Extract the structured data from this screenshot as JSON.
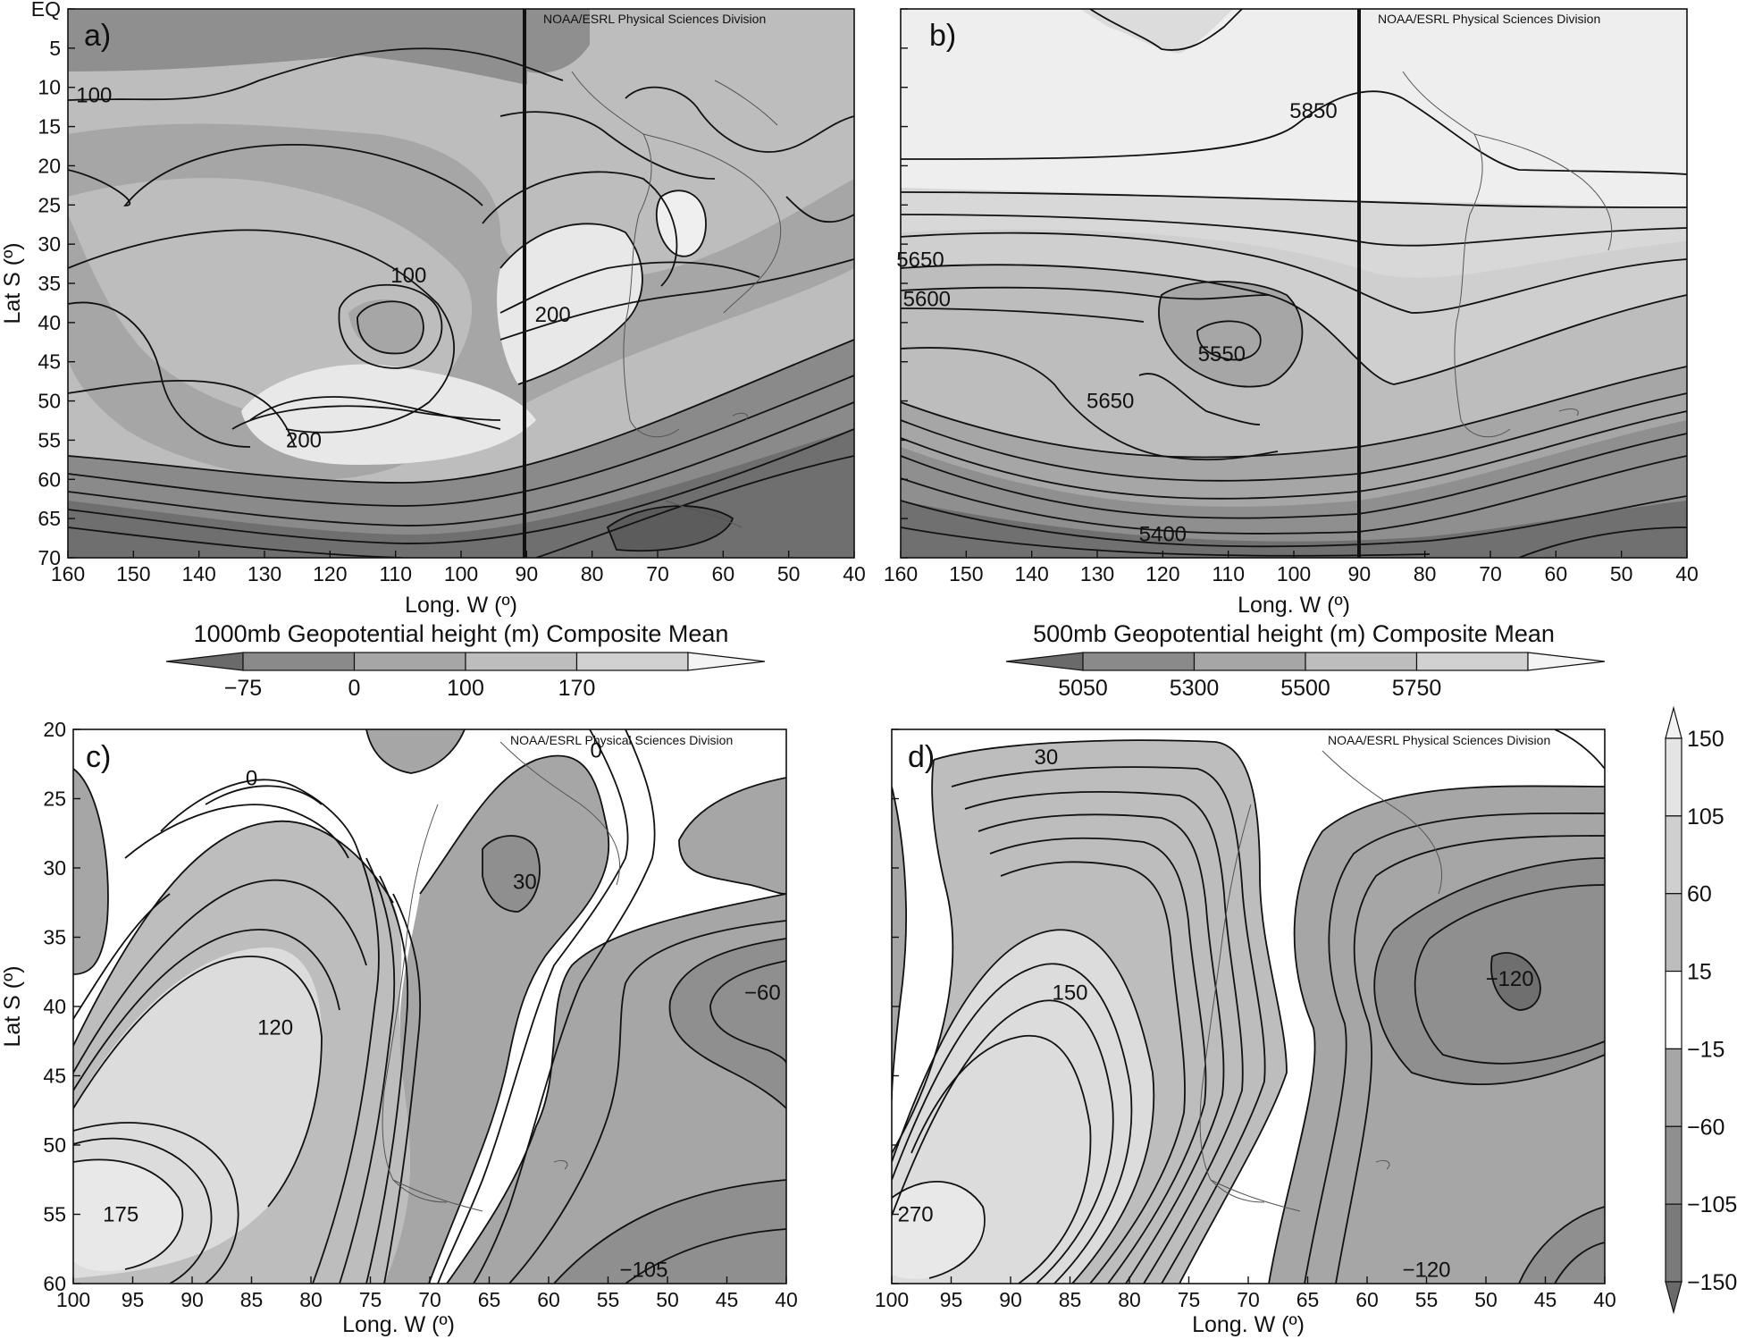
{
  "panels": [
    {
      "letter": "a)",
      "credit": "NOAA/ESRL Physical Sciences Division",
      "xlabel": "Long. W (º)",
      "ylabel": "Lat S (º)",
      "xticks": [
        "160",
        "150",
        "140",
        "130",
        "120",
        "110",
        "100",
        "90",
        "80",
        "70",
        "60",
        "50",
        "40"
      ],
      "yticks": [
        "EQ",
        "5",
        "10",
        "15",
        "20",
        "25",
        "30",
        "35",
        "40",
        "45",
        "50",
        "55",
        "60",
        "65",
        "70"
      ],
      "contour_labels": [
        {
          "text": "100",
          "lon": 156,
          "lat": 11
        },
        {
          "text": "100",
          "lon": 108,
          "lat": 34
        },
        {
          "text": "200",
          "lon": 86,
          "lat": 39
        },
        {
          "text": "200",
          "lon": 124,
          "lat": 55
        }
      ],
      "colorbar": {
        "title": "1000mb Geopotential height (m) Composite Mean",
        "labels": [
          "−75",
          "0",
          "100",
          "170"
        ]
      }
    },
    {
      "letter": "b)",
      "credit": "NOAA/ESRL Physical Sciences Division",
      "xlabel": "Long. W (º)",
      "ylabel": "",
      "xticks": [
        "160",
        "150",
        "140",
        "130",
        "120",
        "110",
        "100",
        "90",
        "80",
        "70",
        "60",
        "50",
        "40"
      ],
      "yticks": [],
      "contour_labels": [
        {
          "text": "5850",
          "lon": 97,
          "lat": 13
        },
        {
          "text": "5650",
          "lon": 157,
          "lat": 32
        },
        {
          "text": "5600",
          "lon": 156,
          "lat": 37
        },
        {
          "text": "5550",
          "lon": 111,
          "lat": 44
        },
        {
          "text": "5650",
          "lon": 128,
          "lat": 50
        },
        {
          "text": "5400",
          "lon": 120,
          "lat": 67
        }
      ],
      "colorbar": {
        "title": "500mb Geopotential height (m) Composite Mean",
        "labels": [
          "5050",
          "5300",
          "5500",
          "5750"
        ]
      }
    },
    {
      "letter": "c)",
      "credit": "NOAA/ESRL Physical Sciences Division",
      "xlabel": "Long. W (º)",
      "ylabel": "Lat S (º)",
      "xticks": [
        "100",
        "95",
        "90",
        "85",
        "80",
        "75",
        "70",
        "65",
        "60",
        "55",
        "50",
        "45",
        "40"
      ],
      "yticks": [
        "20",
        "25",
        "30",
        "35",
        "40",
        "45",
        "50",
        "55",
        "60"
      ],
      "contour_labels": [
        {
          "text": "0",
          "lon": 85,
          "lat": 23.5
        },
        {
          "text": "0",
          "lon": 56,
          "lat": 21.5
        },
        {
          "text": "30",
          "lon": 62,
          "lat": 31
        },
        {
          "text": "120",
          "lon": 83,
          "lat": 41.5
        },
        {
          "text": "−60",
          "lon": 42,
          "lat": 39
        },
        {
          "text": "175",
          "lon": 96,
          "lat": 55
        },
        {
          "text": "−105",
          "lon": 52,
          "lat": 59
        }
      ]
    },
    {
      "letter": "d)",
      "credit": "NOAA/ESRL Physical Sciences Division",
      "xlabel": "Long. W (º)",
      "ylabel": "",
      "xticks": [
        "100",
        "95",
        "90",
        "85",
        "80",
        "75",
        "70",
        "65",
        "60",
        "55",
        "50",
        "45",
        "40"
      ],
      "yticks": [],
      "contour_labels": [
        {
          "text": "30",
          "lon": 87,
          "lat": 22
        },
        {
          "text": "150",
          "lon": 85,
          "lat": 39
        },
        {
          "text": "−120",
          "lon": 48,
          "lat": 38
        },
        {
          "text": "270",
          "lon": 98,
          "lat": 55
        },
        {
          "text": "−120",
          "lon": 55,
          "lat": 59
        }
      ]
    }
  ],
  "shared_colorbar": {
    "labels": [
      "150",
      "105",
      "60",
      "15",
      "−15",
      "−60",
      "−105",
      "−150"
    ]
  },
  "chart_data": [
    {
      "type": "heatmap",
      "panel": "a)",
      "title": "1000mb Geopotential height (m) Composite Mean",
      "xlabel": "Long. W (º)",
      "ylabel": "Lat S (º)",
      "xlim": [
        160,
        40
      ],
      "ylim": [
        0,
        70
      ],
      "levels": [
        -75,
        0,
        100,
        170
      ],
      "reference_meridian": 90
    },
    {
      "type": "heatmap",
      "panel": "b)",
      "title": "500mb Geopotential height (m) Composite Mean",
      "xlabel": "Long. W (º)",
      "xlim": [
        160,
        40
      ],
      "ylim": [
        0,
        70
      ],
      "levels": [
        5050,
        5300,
        5500,
        5750
      ],
      "reference_meridian": 90
    },
    {
      "type": "heatmap",
      "panel": "c)",
      "xlabel": "Long. W (º)",
      "ylabel": "Lat S (º)",
      "xlim": [
        100,
        40
      ],
      "ylim": [
        20,
        60
      ],
      "levels": [
        -150,
        -105,
        -60,
        -15,
        15,
        60,
        105,
        150
      ]
    },
    {
      "type": "heatmap",
      "panel": "d)",
      "xlabel": "Long. W (º)",
      "xlim": [
        100,
        40
      ],
      "ylim": [
        20,
        60
      ],
      "levels": [
        -150,
        -105,
        -60,
        -15,
        15,
        60,
        105,
        150
      ]
    }
  ]
}
